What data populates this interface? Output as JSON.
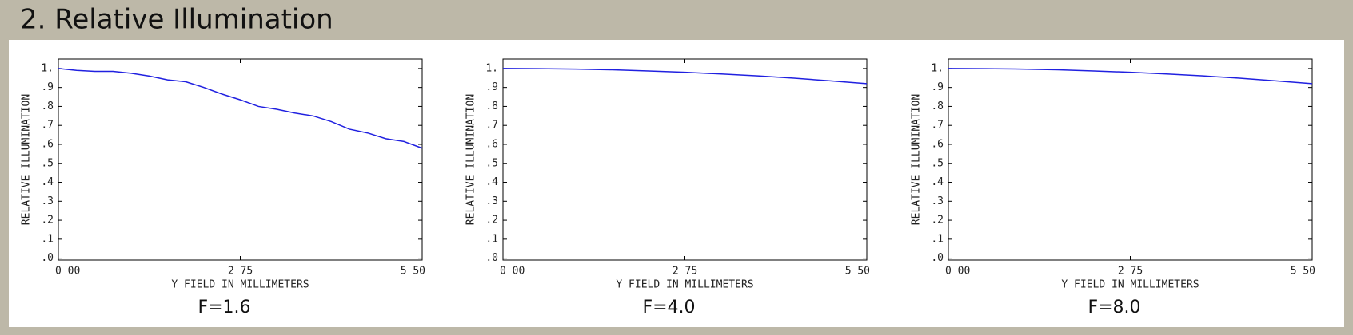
{
  "header": {
    "title": "2. Relative Illumination"
  },
  "chart_data": [
    {
      "type": "line",
      "title": "F=1.6",
      "x_label": "Y FIELD IN MILLIMETERS",
      "y_label": "RELATIVE ILLUMINATION",
      "x": [
        0,
        0.275,
        0.55,
        0.825,
        1.1,
        1.375,
        1.65,
        1.925,
        2.2,
        2.475,
        2.75,
        3.025,
        3.3,
        3.575,
        3.85,
        4.125,
        4.4,
        4.675,
        4.95,
        5.225,
        5.5
      ],
      "series": [
        {
          "color": "#2020e0",
          "values": [
            1.0,
            0.99,
            0.985,
            0.985,
            0.975,
            0.96,
            0.94,
            0.93,
            0.9,
            0.865,
            0.835,
            0.8,
            0.785,
            0.765,
            0.75,
            0.72,
            0.68,
            0.66,
            0.63,
            0.615,
            0.58
          ]
        }
      ],
      "xlim": [
        0,
        5.5
      ],
      "ylim": [
        -0.01,
        1.05
      ],
      "xticks": [
        {
          "value": 0,
          "label": "0 00"
        },
        {
          "value": 2.75,
          "label": "2 75"
        },
        {
          "value": 5.5,
          "label": "5 50"
        }
      ],
      "yticks": [
        {
          "value": 0,
          "label": ".0"
        },
        {
          "value": 0.1,
          "label": ".1"
        },
        {
          "value": 0.2,
          "label": ".2"
        },
        {
          "value": 0.3,
          "label": ".3"
        },
        {
          "value": 0.4,
          "label": ".4"
        },
        {
          "value": 0.5,
          "label": ".5"
        },
        {
          "value": 0.6,
          "label": ".6"
        },
        {
          "value": 0.7,
          "label": ".7"
        },
        {
          "value": 0.8,
          "label": ".8"
        },
        {
          "value": 0.9,
          "label": ".9"
        },
        {
          "value": 1,
          "label": "1."
        }
      ]
    },
    {
      "type": "line",
      "title": "F=4.0",
      "x_label": "Y FIELD IN MILLIMETERS",
      "y_label": "RELATIVE ILLUMINATION",
      "x": [
        0,
        0.55,
        1.1,
        1.65,
        2.2,
        2.75,
        3.3,
        3.85,
        4.4,
        4.95,
        5.5
      ],
      "series": [
        {
          "color": "#2020e0",
          "values": [
            1.0,
            0.999,
            0.997,
            0.993,
            0.987,
            0.98,
            0.971,
            0.961,
            0.949,
            0.935,
            0.92
          ]
        }
      ],
      "xlim": [
        0,
        5.5
      ],
      "ylim": [
        -0.01,
        1.05
      ],
      "xticks": [
        {
          "value": 0,
          "label": "0 00"
        },
        {
          "value": 2.75,
          "label": "2 75"
        },
        {
          "value": 5.5,
          "label": "5 50"
        }
      ],
      "yticks": [
        {
          "value": 0,
          "label": ".0"
        },
        {
          "value": 0.1,
          "label": ".1"
        },
        {
          "value": 0.2,
          "label": ".2"
        },
        {
          "value": 0.3,
          "label": ".3"
        },
        {
          "value": 0.4,
          "label": ".4"
        },
        {
          "value": 0.5,
          "label": ".5"
        },
        {
          "value": 0.6,
          "label": ".6"
        },
        {
          "value": 0.7,
          "label": ".7"
        },
        {
          "value": 0.8,
          "label": ".8"
        },
        {
          "value": 0.9,
          "label": ".9"
        },
        {
          "value": 1,
          "label": "1."
        }
      ]
    },
    {
      "type": "line",
      "title": "F=8.0",
      "x_label": "Y FIELD IN MILLIMETERS",
      "y_label": "RELATIVE ILLUMINATION",
      "x": [
        0,
        0.55,
        1.1,
        1.65,
        2.2,
        2.75,
        3.3,
        3.85,
        4.4,
        4.95,
        5.5
      ],
      "series": [
        {
          "color": "#2020e0",
          "values": [
            1.0,
            0.999,
            0.997,
            0.993,
            0.987,
            0.98,
            0.971,
            0.961,
            0.949,
            0.935,
            0.92
          ]
        }
      ],
      "xlim": [
        0,
        5.5
      ],
      "ylim": [
        -0.01,
        1.05
      ],
      "xticks": [
        {
          "value": 0,
          "label": "0 00"
        },
        {
          "value": 2.75,
          "label": "2 75"
        },
        {
          "value": 5.5,
          "label": "5 50"
        }
      ],
      "yticks": [
        {
          "value": 0,
          "label": ".0"
        },
        {
          "value": 0.1,
          "label": ".1"
        },
        {
          "value": 0.2,
          "label": ".2"
        },
        {
          "value": 0.3,
          "label": ".3"
        },
        {
          "value": 0.4,
          "label": ".4"
        },
        {
          "value": 0.5,
          "label": ".5"
        },
        {
          "value": 0.6,
          "label": ".6"
        },
        {
          "value": 0.7,
          "label": ".7"
        },
        {
          "value": 0.8,
          "label": ".8"
        },
        {
          "value": 0.9,
          "label": ".9"
        },
        {
          "value": 1,
          "label": "1."
        }
      ]
    }
  ]
}
